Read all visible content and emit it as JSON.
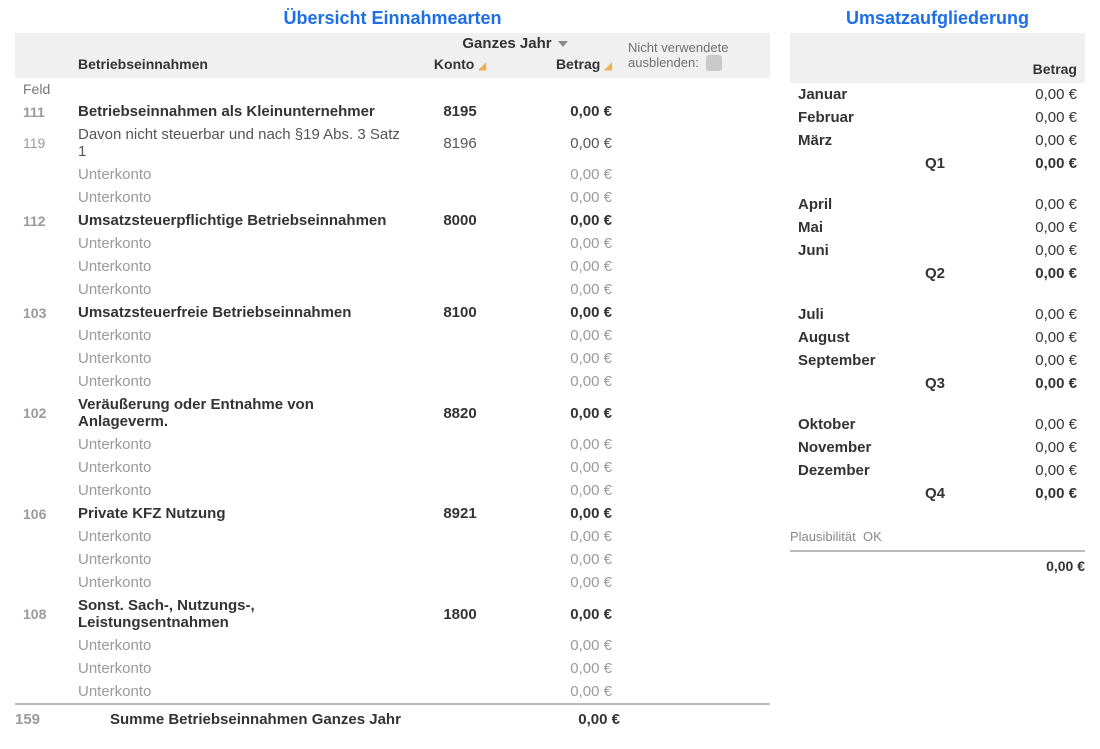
{
  "left": {
    "title": "Übersicht Einnahmearten",
    "period": "Ganzes Jahr",
    "hide_unused_label": "Nicht verwendete ausblenden:",
    "columns": {
      "field": "Feld",
      "desc": "Betriebseinnahmen",
      "konto": "Konto",
      "betrag": "Betrag"
    },
    "rows": [
      {
        "type": "main",
        "field": "111",
        "desc": "Betriebseinnahmen als Kleinunternehmer",
        "konto": "8195",
        "betrag": "0,00 €"
      },
      {
        "type": "main_light",
        "field": "119",
        "desc": "Davon nicht steuerbar und nach §19 Abs. 3 Satz 1",
        "konto": "8196",
        "betrag": "0,00 €"
      },
      {
        "type": "sub",
        "desc": "Unterkonto",
        "betrag": "0,00 €"
      },
      {
        "type": "sub",
        "desc": "Unterkonto",
        "betrag": "0,00 €"
      },
      {
        "type": "main",
        "field": "112",
        "desc": "Umsatzsteuerpflichtige Betriebseinnahmen",
        "konto": "8000",
        "betrag": "0,00 €"
      },
      {
        "type": "sub",
        "desc": "Unterkonto",
        "betrag": "0,00 €"
      },
      {
        "type": "sub",
        "desc": "Unterkonto",
        "betrag": "0,00 €"
      },
      {
        "type": "sub",
        "desc": "Unterkonto",
        "betrag": "0,00 €"
      },
      {
        "type": "main",
        "field": "103",
        "desc": "Umsatzsteuerfreie Betriebseinnahmen",
        "konto": "8100",
        "betrag": "0,00 €"
      },
      {
        "type": "sub",
        "desc": "Unterkonto",
        "betrag": "0,00 €"
      },
      {
        "type": "sub",
        "desc": "Unterkonto",
        "betrag": "0,00 €"
      },
      {
        "type": "sub",
        "desc": "Unterkonto",
        "betrag": "0,00 €"
      },
      {
        "type": "main",
        "field": "102",
        "desc": "Veräußerung oder Entnahme von Anlageverm.",
        "konto": "8820",
        "betrag": "0,00 €"
      },
      {
        "type": "sub",
        "desc": "Unterkonto",
        "betrag": "0,00 €"
      },
      {
        "type": "sub",
        "desc": "Unterkonto",
        "betrag": "0,00 €"
      },
      {
        "type": "sub",
        "desc": "Unterkonto",
        "betrag": "0,00 €"
      },
      {
        "type": "main",
        "field": "106",
        "desc": "Private KFZ Nutzung",
        "konto": "8921",
        "betrag": "0,00 €"
      },
      {
        "type": "sub",
        "desc": "Unterkonto",
        "betrag": "0,00 €"
      },
      {
        "type": "sub",
        "desc": "Unterkonto",
        "betrag": "0,00 €"
      },
      {
        "type": "sub",
        "desc": "Unterkonto",
        "betrag": "0,00 €"
      },
      {
        "type": "main",
        "field": "108",
        "desc": "Sonst. Sach-, Nutzungs-, Leistungsentnahmen",
        "konto": "1800",
        "betrag": "0,00 €"
      },
      {
        "type": "sub",
        "desc": "Unterkonto",
        "betrag": "0,00 €"
      },
      {
        "type": "sub",
        "desc": "Unterkonto",
        "betrag": "0,00 €"
      },
      {
        "type": "sub",
        "desc": "Unterkonto",
        "betrag": "0,00 €"
      }
    ],
    "sum": {
      "field": "159",
      "label": "Summe Betriebseinnahmen Ganzes Jahr",
      "betrag": "0,00 €"
    }
  },
  "right": {
    "title": "Umsatzaufgliederung",
    "col_betrag": "Betrag",
    "rows": [
      {
        "type": "m",
        "label": "Januar",
        "amt": "0,00 €"
      },
      {
        "type": "m",
        "label": "Februar",
        "amt": "0,00 €"
      },
      {
        "type": "m",
        "label": "März",
        "amt": "0,00 €"
      },
      {
        "type": "q",
        "label": "Q1",
        "amt": "0,00 €"
      },
      {
        "type": "sp"
      },
      {
        "type": "m",
        "label": "April",
        "amt": "0,00 €"
      },
      {
        "type": "m",
        "label": "Mai",
        "amt": "0,00 €"
      },
      {
        "type": "m",
        "label": "Juni",
        "amt": "0,00 €"
      },
      {
        "type": "q",
        "label": "Q2",
        "amt": "0,00 €"
      },
      {
        "type": "sp"
      },
      {
        "type": "m",
        "label": "Juli",
        "amt": "0,00 €"
      },
      {
        "type": "m",
        "label": "August",
        "amt": "0,00 €"
      },
      {
        "type": "m",
        "label": "September",
        "amt": "0,00 €"
      },
      {
        "type": "q",
        "label": "Q3",
        "amt": "0,00 €"
      },
      {
        "type": "sp"
      },
      {
        "type": "m",
        "label": "Oktober",
        "amt": "0,00 €"
      },
      {
        "type": "m",
        "label": "November",
        "amt": "0,00 €"
      },
      {
        "type": "m",
        "label": "Dezember",
        "amt": "0,00 €"
      },
      {
        "type": "q",
        "label": "Q4",
        "amt": "0,00 €"
      },
      {
        "type": "sp"
      }
    ],
    "plaus_label": "Plausibilität",
    "plaus_value": "OK",
    "total": "0,00 €"
  },
  "colors": {
    "accent": "#1d6ee8",
    "header_bg": "#f0f0f0",
    "muted": "#9a9a9a",
    "sort": "#f0b050"
  }
}
